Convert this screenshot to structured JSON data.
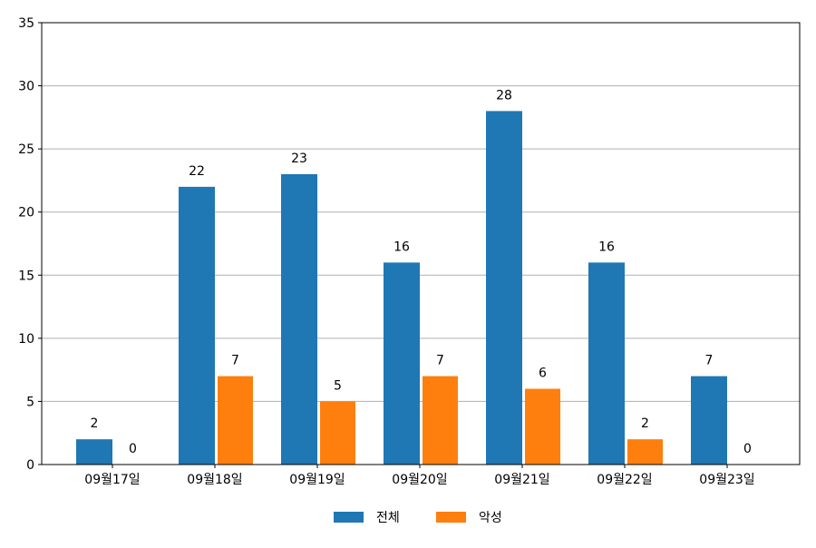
{
  "chart_data": {
    "type": "bar",
    "categories": [
      "09월17일",
      "09월18일",
      "09월19일",
      "09월20일",
      "09월21일",
      "09월22일",
      "09월23일"
    ],
    "series": [
      {
        "name": "전체",
        "color": "#1f77b4",
        "values": [
          2,
          22,
          23,
          16,
          28,
          16,
          7
        ]
      },
      {
        "name": "악성",
        "color": "#ff7f0e",
        "values": [
          0,
          7,
          5,
          7,
          6,
          2,
          0
        ]
      }
    ],
    "ylim": [
      0,
      35
    ],
    "yticks": [
      0,
      5,
      10,
      15,
      20,
      25,
      30,
      35
    ],
    "grid": "horizontal",
    "legend": "bottom-center",
    "data_labels": true
  }
}
